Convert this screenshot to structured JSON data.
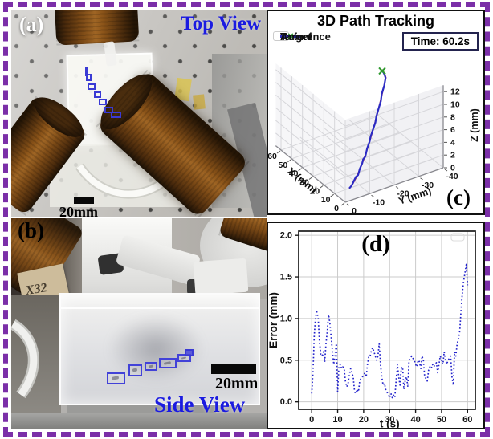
{
  "colors": {
    "frame_border": "#7b2fa8",
    "view_label_blue": "#1b1be0",
    "tracking_box_blue": "#3a3ad4",
    "reference_red": "#d43d3d",
    "actual_blue": "#2b2bc4",
    "target_green": "#2e9a2e",
    "error_line_blue": "#2323cc"
  },
  "panel_a": {
    "label": "(a)",
    "view_label": "Top View",
    "scale_label": "20mm"
  },
  "panel_b": {
    "label": "(b)",
    "view_label": "Side View",
    "scale_label": "20mm",
    "handwritten_note": "X32"
  },
  "panel_c": {
    "label": "(c)"
  },
  "panel_d": {
    "label": "(d)"
  },
  "chart_data": [
    {
      "panel": "c",
      "type": "line3d",
      "title": "3D Path Tracking",
      "annotation": "Time: 60.2s",
      "xlabel": "X (mm)",
      "ylabel": "Y (mm)",
      "zlabel": "Z (mm)",
      "xticks": [
        0,
        10,
        20,
        30,
        40,
        50,
        60
      ],
      "yticks": [
        0,
        -10,
        -20,
        -30,
        -40
      ],
      "zticks": [
        0,
        2,
        4,
        6,
        8,
        10,
        12
      ],
      "xlim": [
        0,
        65
      ],
      "ylim": [
        0,
        -40
      ],
      "zlim": [
        0,
        13
      ],
      "legend": [
        {
          "label": "Reference",
          "color": "#d43d3d",
          "marker": "line"
        },
        {
          "label": "Actual",
          "color": "#2b2bc4",
          "marker": "line"
        },
        {
          "label": "Target",
          "color": "#2e9a2e",
          "marker": "x"
        }
      ],
      "reference": [
        [
          10,
          -6,
          0
        ],
        [
          11.5,
          -8.15,
          0.25
        ],
        [
          13,
          -10.3,
          0.81
        ],
        [
          14.5,
          -12.45,
          1.62
        ],
        [
          16,
          -14.6,
          2.64
        ],
        [
          17.5,
          -16.75,
          3.85
        ],
        [
          19,
          -18.9,
          5.25
        ],
        [
          20.5,
          -21.05,
          6.81
        ],
        [
          21.25,
          -22.13,
          7.66
        ],
        [
          22,
          -23.2,
          8.55
        ],
        [
          22.75,
          -24.28,
          9.47
        ],
        [
          23.5,
          -25.35,
          10.44
        ],
        [
          24.25,
          -26.43,
          11.45
        ],
        [
          25,
          -27.5,
          12.5
        ],
        [
          25.7,
          -27.4,
          12.9
        ],
        [
          26.2,
          -27.1,
          13.25
        ],
        [
          26.8,
          -26.6,
          13.6
        ]
      ],
      "actual": [
        [
          10,
          -6,
          0
        ],
        [
          10.8,
          -7.3,
          0.15
        ],
        [
          11.7,
          -8.3,
          0.35
        ],
        [
          13.2,
          -10.1,
          0.8
        ],
        [
          12.9,
          -10.9,
          1.05
        ],
        [
          14.6,
          -12.3,
          1.6
        ],
        [
          15.3,
          -13.6,
          2.2
        ],
        [
          16.2,
          -14.4,
          2.6
        ],
        [
          15.9,
          -15.1,
          2.95
        ],
        [
          17.6,
          -16.6,
          3.8
        ],
        [
          18.3,
          -18,
          4.7
        ],
        [
          19.1,
          -18.7,
          5.2
        ],
        [
          20.4,
          -21.2,
          6.9
        ],
        [
          21.3,
          -22,
          7.6
        ],
        [
          22.1,
          -23.3,
          8.6
        ],
        [
          22.6,
          -24.4,
          9.5
        ],
        [
          23.6,
          -25.2,
          10.4
        ],
        [
          24.2,
          -26.5,
          11.5
        ],
        [
          25,
          -27.4,
          12.45
        ],
        [
          25.7,
          -27.3,
          12.85
        ],
        [
          26.15,
          -27.1,
          13.15
        ],
        [
          26.5,
          -26.9,
          13.3
        ]
      ],
      "target": [
        26.7,
        -26.75,
        13.4
      ]
    },
    {
      "panel": "d",
      "type": "line",
      "xlabel": "t (s)",
      "ylabel": "Error (mm)",
      "xticks": [
        0,
        10,
        20,
        30,
        40,
        50,
        60
      ],
      "yticks": [
        0,
        0.5,
        1,
        1.5,
        2
      ],
      "xlim": [
        -5,
        63
      ],
      "ylim": [
        -0.09,
        2.05
      ],
      "line_color": "#2323cc",
      "line_style": "dotted",
      "grid": true,
      "t_start": 0,
      "t_step": 0.5,
      "error": [
        0.1,
        0.35,
        0.8,
        1.02,
        1.08,
        1.0,
        0.72,
        0.57,
        0.55,
        0.6,
        0.48,
        0.7,
        0.85,
        1.05,
        0.95,
        0.78,
        0.6,
        0.45,
        0.55,
        0.7,
        0.12,
        0.42,
        0.45,
        0.4,
        0.42,
        0.4,
        0.25,
        0.18,
        0.22,
        0.32,
        0.4,
        0.35,
        0.3,
        0.12,
        0.1,
        0.15,
        0.12,
        0.25,
        0.28,
        0.3,
        0.32,
        0.35,
        0.3,
        0.45,
        0.55,
        0.55,
        0.62,
        0.65,
        0.6,
        0.55,
        0.5,
        0.55,
        0.7,
        0.45,
        0.3,
        0.2,
        0.22,
        0.15,
        0.12,
        0.08,
        0.05,
        0.1,
        0.05,
        0.08,
        0.05,
        0.25,
        0.45,
        0.3,
        0.2,
        0.4,
        0.42,
        0.15,
        0.25,
        0.3,
        0.18,
        0.5,
        0.52,
        0.55,
        0.52,
        0.5,
        0.45,
        0.42,
        0.5,
        0.48,
        0.4,
        0.55,
        0.5,
        0.3,
        0.28,
        0.25,
        0.38,
        0.42,
        0.4,
        0.45,
        0.42,
        0.45,
        0.47,
        0.35,
        0.45,
        0.55,
        0.5,
        0.45,
        0.6,
        0.5,
        0.45,
        0.5,
        0.52,
        0.55,
        0.3,
        0.2,
        0.6,
        0.55,
        0.7,
        0.75,
        0.85,
        1.1,
        1.3,
        1.45,
        1.55,
        1.65,
        1.4
      ]
    }
  ]
}
